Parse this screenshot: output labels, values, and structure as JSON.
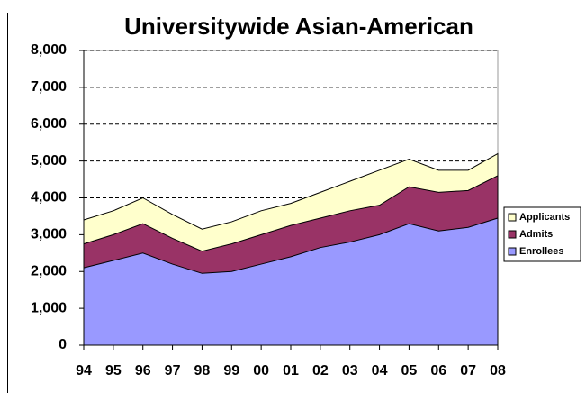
{
  "chart_data": {
    "type": "area",
    "title": "Universitywide Asian-American",
    "categories": [
      "94",
      "95",
      "96",
      "97",
      "98",
      "99",
      "00",
      "01",
      "02",
      "03",
      "04",
      "05",
      "06",
      "07",
      "08"
    ],
    "series": [
      {
        "name": "Applicants",
        "color": "#ffffcc",
        "values": [
          3400,
          3650,
          4000,
          3550,
          3150,
          3350,
          3650,
          3850,
          4150,
          4450,
          4750,
          5050,
          4750,
          4750,
          5200
        ]
      },
      {
        "name": "Admits",
        "color": "#993366",
        "values": [
          2750,
          3000,
          3300,
          2900,
          2550,
          2750,
          3000,
          3250,
          3450,
          3650,
          3800,
          4300,
          4150,
          4200,
          4600
        ]
      },
      {
        "name": "Enrollees",
        "color": "#9999ff",
        "values": [
          2100,
          2300,
          2500,
          2200,
          1950,
          2000,
          2200,
          2400,
          2650,
          2800,
          3000,
          3300,
          3100,
          3200,
          3450
        ]
      }
    ],
    "ylim": [
      0,
      8000
    ],
    "yticks": [
      0,
      {
        "value": 1000,
        "label": "1,000"
      },
      {
        "value": 2000,
        "label": "2,000"
      },
      {
        "value": 3000,
        "label": "3,000"
      },
      {
        "value": 4000,
        "label": "4,000"
      },
      {
        "value": 5000,
        "label": "5,000"
      },
      {
        "value": 6000,
        "label": "6,000"
      },
      {
        "value": 7000,
        "label": "7,000"
      },
      {
        "value": 8000,
        "label": "8,000"
      }
    ],
    "grid": true,
    "legend": "right"
  }
}
